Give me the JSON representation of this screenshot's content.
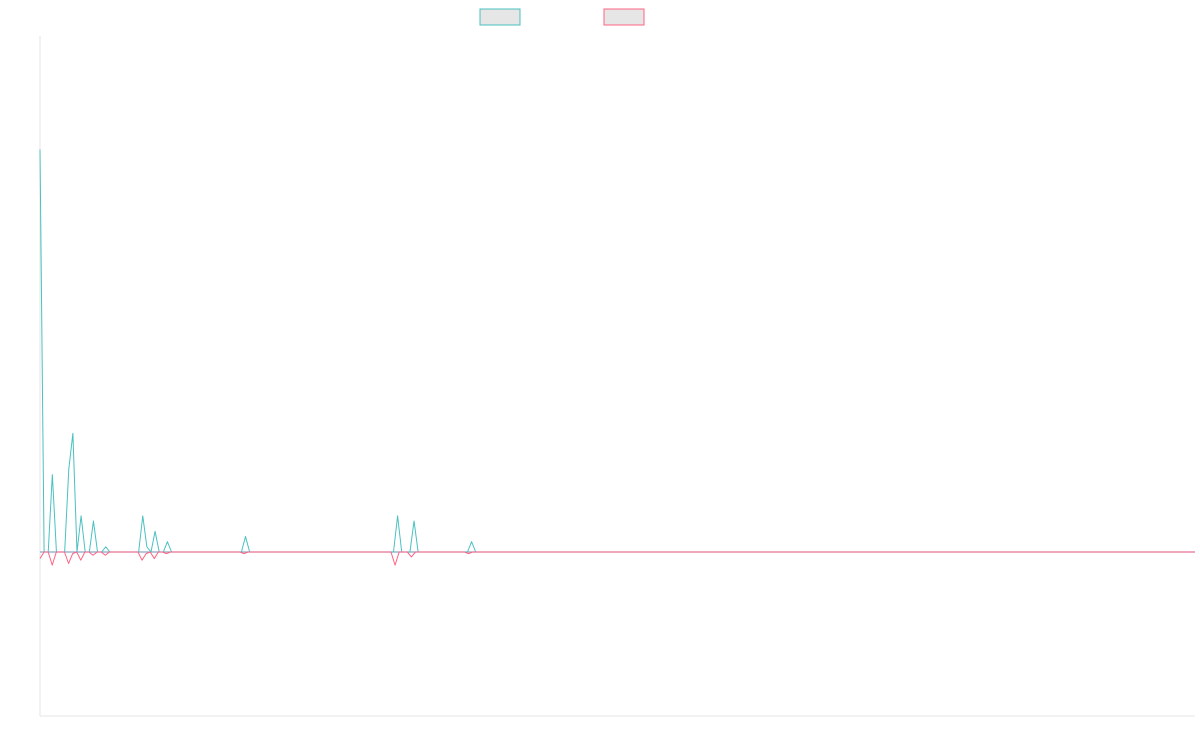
{
  "chart_data": {
    "type": "line",
    "title": "",
    "xlabel": "",
    "ylabel": "",
    "grid": false,
    "legend_position": "top-center",
    "ylim": [
      -1,
      1
    ],
    "series": [
      {
        "color": "#4bc0c0",
        "fill": "#e6e6e6",
        "values": [
          0.78,
          0.0,
          0.0,
          0.15,
          0.0,
          0.0,
          0.0,
          0.16,
          0.23,
          0.0,
          0.07,
          0.0,
          0.0,
          0.06,
          0.0,
          0.0,
          0.01,
          0.0,
          0.0,
          0.0,
          0.0,
          0.0,
          0.0,
          0.0,
          0.0,
          0.07,
          0.01,
          0.0,
          0.04,
          0.0,
          0.0,
          0.02,
          0.0,
          0.0,
          0.0,
          0.0,
          0.0,
          0.0,
          0.0,
          0.0,
          0.0,
          0.0,
          0.0,
          0.0,
          0.0,
          0.0,
          0.0,
          0.0,
          0.0,
          0.0,
          0.03,
          0.0,
          0.0,
          0.0,
          0.0,
          0.0,
          0.0,
          0.0,
          0.0,
          0.0,
          0.0,
          0.0,
          0.0,
          0.0,
          0.0,
          0.0,
          0.0,
          0.0,
          0.0,
          0.0,
          0.0,
          0.0,
          0.0,
          0.0,
          0.0,
          0.0,
          0.0,
          0.0,
          0.0,
          0.0,
          0.0,
          0.0,
          0.0,
          0.0,
          0.0,
          0.0,
          0.0,
          0.07,
          0.0,
          0.0,
          0.0,
          0.06,
          0.0,
          0.0,
          0.0,
          0.0,
          0.0,
          0.0,
          0.0,
          0.0,
          0.0,
          0.0,
          0.0,
          0.0,
          0.0,
          0.02,
          0.0,
          0.0,
          0.0,
          0.0,
          0.0,
          0.0,
          0.0,
          0.0,
          0.0,
          0.0,
          0.0,
          0.0,
          0.0,
          0.0,
          0.0,
          0.0,
          0.0,
          0.0,
          0.0,
          0.0,
          0.0,
          0.0,
          0.0,
          0.0,
          0.0,
          0.0,
          0.0,
          0.0,
          0.0,
          0.0,
          0.0,
          0.0,
          0.0,
          0.0,
          0.0,
          0.0,
          0.0,
          0.0,
          0.0,
          0.0,
          0.0,
          0.0,
          0.0,
          0.0,
          0.0,
          0.0,
          0.0,
          0.0,
          0.0,
          0.0,
          0.0,
          0.0,
          0.0,
          0.0,
          0.0,
          0.0,
          0.0,
          0.0,
          0.0,
          0.0,
          0.0,
          0.0,
          0.0,
          0.0,
          0.0,
          0.0,
          0.0,
          0.0,
          0.0,
          0.0,
          0.0,
          0.0,
          0.0,
          0.0,
          0.0,
          0.0,
          0.0,
          0.0,
          0.0,
          0.0,
          0.0,
          0.0,
          0.0,
          0.0,
          0.0,
          0.0,
          0.0,
          0.0,
          0.0,
          0.0,
          0.0,
          0.0,
          0.0,
          0.0,
          0.0,
          0.0,
          0.0,
          0.0,
          0.0,
          0.0,
          0.0,
          0.0,
          0.0,
          0.0,
          0.0,
          0.0,
          0.0,
          0.0,
          0.0,
          0.0,
          0.0,
          0.0,
          0.0,
          0.0,
          0.0,
          0.0,
          0.0,
          0.0,
          0.0,
          0.0,
          0.0,
          0.0,
          0.0,
          0.0,
          0.0,
          0.0,
          0.0,
          0.0,
          0.0,
          0.0,
          0.0,
          0.0,
          0.0,
          0.0,
          0.0,
          0.0,
          0.0,
          0.0,
          0.0,
          0.0,
          0.0,
          0.0,
          0.0,
          0.0,
          0.0,
          0.0,
          0.0,
          0.0,
          0.0,
          0.0,
          0.0,
          0.0,
          0.0,
          0.0,
          0.0,
          0.0,
          0.0,
          0.0,
          0.0,
          0.0,
          0.0,
          0.0,
          0.0,
          0.0,
          0.0,
          0.0,
          0.0,
          0.0,
          0.0,
          0.0,
          0.0,
          0.0,
          0.0,
          0.0,
          0.0,
          0.0
        ]
      },
      {
        "color": "#ff6384",
        "fill": "#e6e6e6",
        "values": [
          -0.04,
          0.0,
          0.0,
          -0.08,
          0.0,
          0.0,
          0.0,
          -0.07,
          -0.01,
          0.0,
          -0.05,
          0.0,
          0.0,
          -0.02,
          0.0,
          0.0,
          -0.02,
          0.0,
          0.0,
          0.0,
          0.0,
          0.0,
          0.0,
          0.0,
          0.0,
          -0.05,
          -0.01,
          0.0,
          -0.04,
          0.0,
          0.0,
          -0.01,
          0.0,
          0.0,
          0.0,
          0.0,
          0.0,
          0.0,
          0.0,
          0.0,
          0.0,
          0.0,
          0.0,
          0.0,
          0.0,
          0.0,
          0.0,
          0.0,
          0.0,
          0.0,
          -0.01,
          0.0,
          0.0,
          0.0,
          0.0,
          0.0,
          0.0,
          0.0,
          0.0,
          0.0,
          0.0,
          0.0,
          0.0,
          0.0,
          0.0,
          0.0,
          0.0,
          0.0,
          0.0,
          0.0,
          0.0,
          0.0,
          0.0,
          0.0,
          0.0,
          0.0,
          0.0,
          0.0,
          0.0,
          0.0,
          0.0,
          0.0,
          0.0,
          0.0,
          0.0,
          0.0,
          0.0,
          -0.08,
          0.0,
          0.0,
          0.0,
          -0.03,
          0.0,
          0.0,
          0.0,
          0.0,
          0.0,
          0.0,
          0.0,
          0.0,
          0.0,
          0.0,
          0.0,
          0.0,
          0.0,
          -0.01,
          0.0,
          0.0,
          0.0,
          0.0,
          0.0,
          0.0,
          0.0,
          0.0,
          0.0,
          0.0,
          0.0,
          0.0,
          0.0,
          0.0,
          0.0,
          0.0,
          0.0,
          0.0,
          0.0,
          0.0,
          0.0,
          0.0,
          0.0,
          0.0,
          0.0,
          0.0,
          0.0,
          0.0,
          0.0,
          0.0,
          0.0,
          0.0,
          0.0,
          0.0,
          0.0,
          0.0,
          0.0,
          0.0,
          0.0,
          0.0,
          0.0,
          0.0,
          0.0,
          0.0,
          0.0,
          0.0,
          0.0,
          0.0,
          0.0,
          0.0,
          0.0,
          0.0,
          0.0,
          0.0,
          0.0,
          0.0,
          0.0,
          0.0,
          0.0,
          0.0,
          0.0,
          0.0,
          0.0,
          0.0,
          0.0,
          0.0,
          0.0,
          0.0,
          0.0,
          0.0,
          0.0,
          0.0,
          0.0,
          0.0,
          0.0,
          0.0,
          0.0,
          0.0,
          0.0,
          0.0,
          0.0,
          0.0,
          0.0,
          0.0,
          0.0,
          0.0,
          0.0,
          0.0,
          0.0,
          0.0,
          0.0,
          0.0,
          0.0,
          0.0,
          0.0,
          0.0,
          0.0,
          0.0,
          0.0,
          0.0,
          0.0,
          0.0,
          0.0,
          0.0,
          0.0,
          0.0,
          0.0,
          0.0,
          0.0,
          0.0,
          0.0,
          0.0,
          0.0,
          0.0,
          0.0,
          0.0,
          0.0,
          0.0,
          0.0,
          0.0,
          0.0,
          0.0,
          0.0,
          0.0,
          0.0,
          0.0,
          0.0,
          0.0,
          0.0,
          0.0,
          0.0,
          0.0,
          0.0,
          0.0,
          0.0,
          0.0,
          0.0,
          0.0,
          0.0,
          0.0,
          0.0,
          0.0,
          0.0,
          0.0,
          0.0,
          0.0,
          0.0,
          0.0,
          0.0,
          0.0,
          0.0,
          0.0,
          0.0,
          0.0,
          0.0,
          0.0,
          0.0,
          0.0,
          0.0,
          0.0,
          0.0,
          0.0,
          0.0,
          0.0,
          0.0,
          0.0,
          0.0,
          0.0,
          0.0,
          0.0,
          0.0,
          0.0,
          0.0,
          0.0,
          0.0,
          0.0,
          0.0,
          0.0
        ]
      }
    ]
  }
}
